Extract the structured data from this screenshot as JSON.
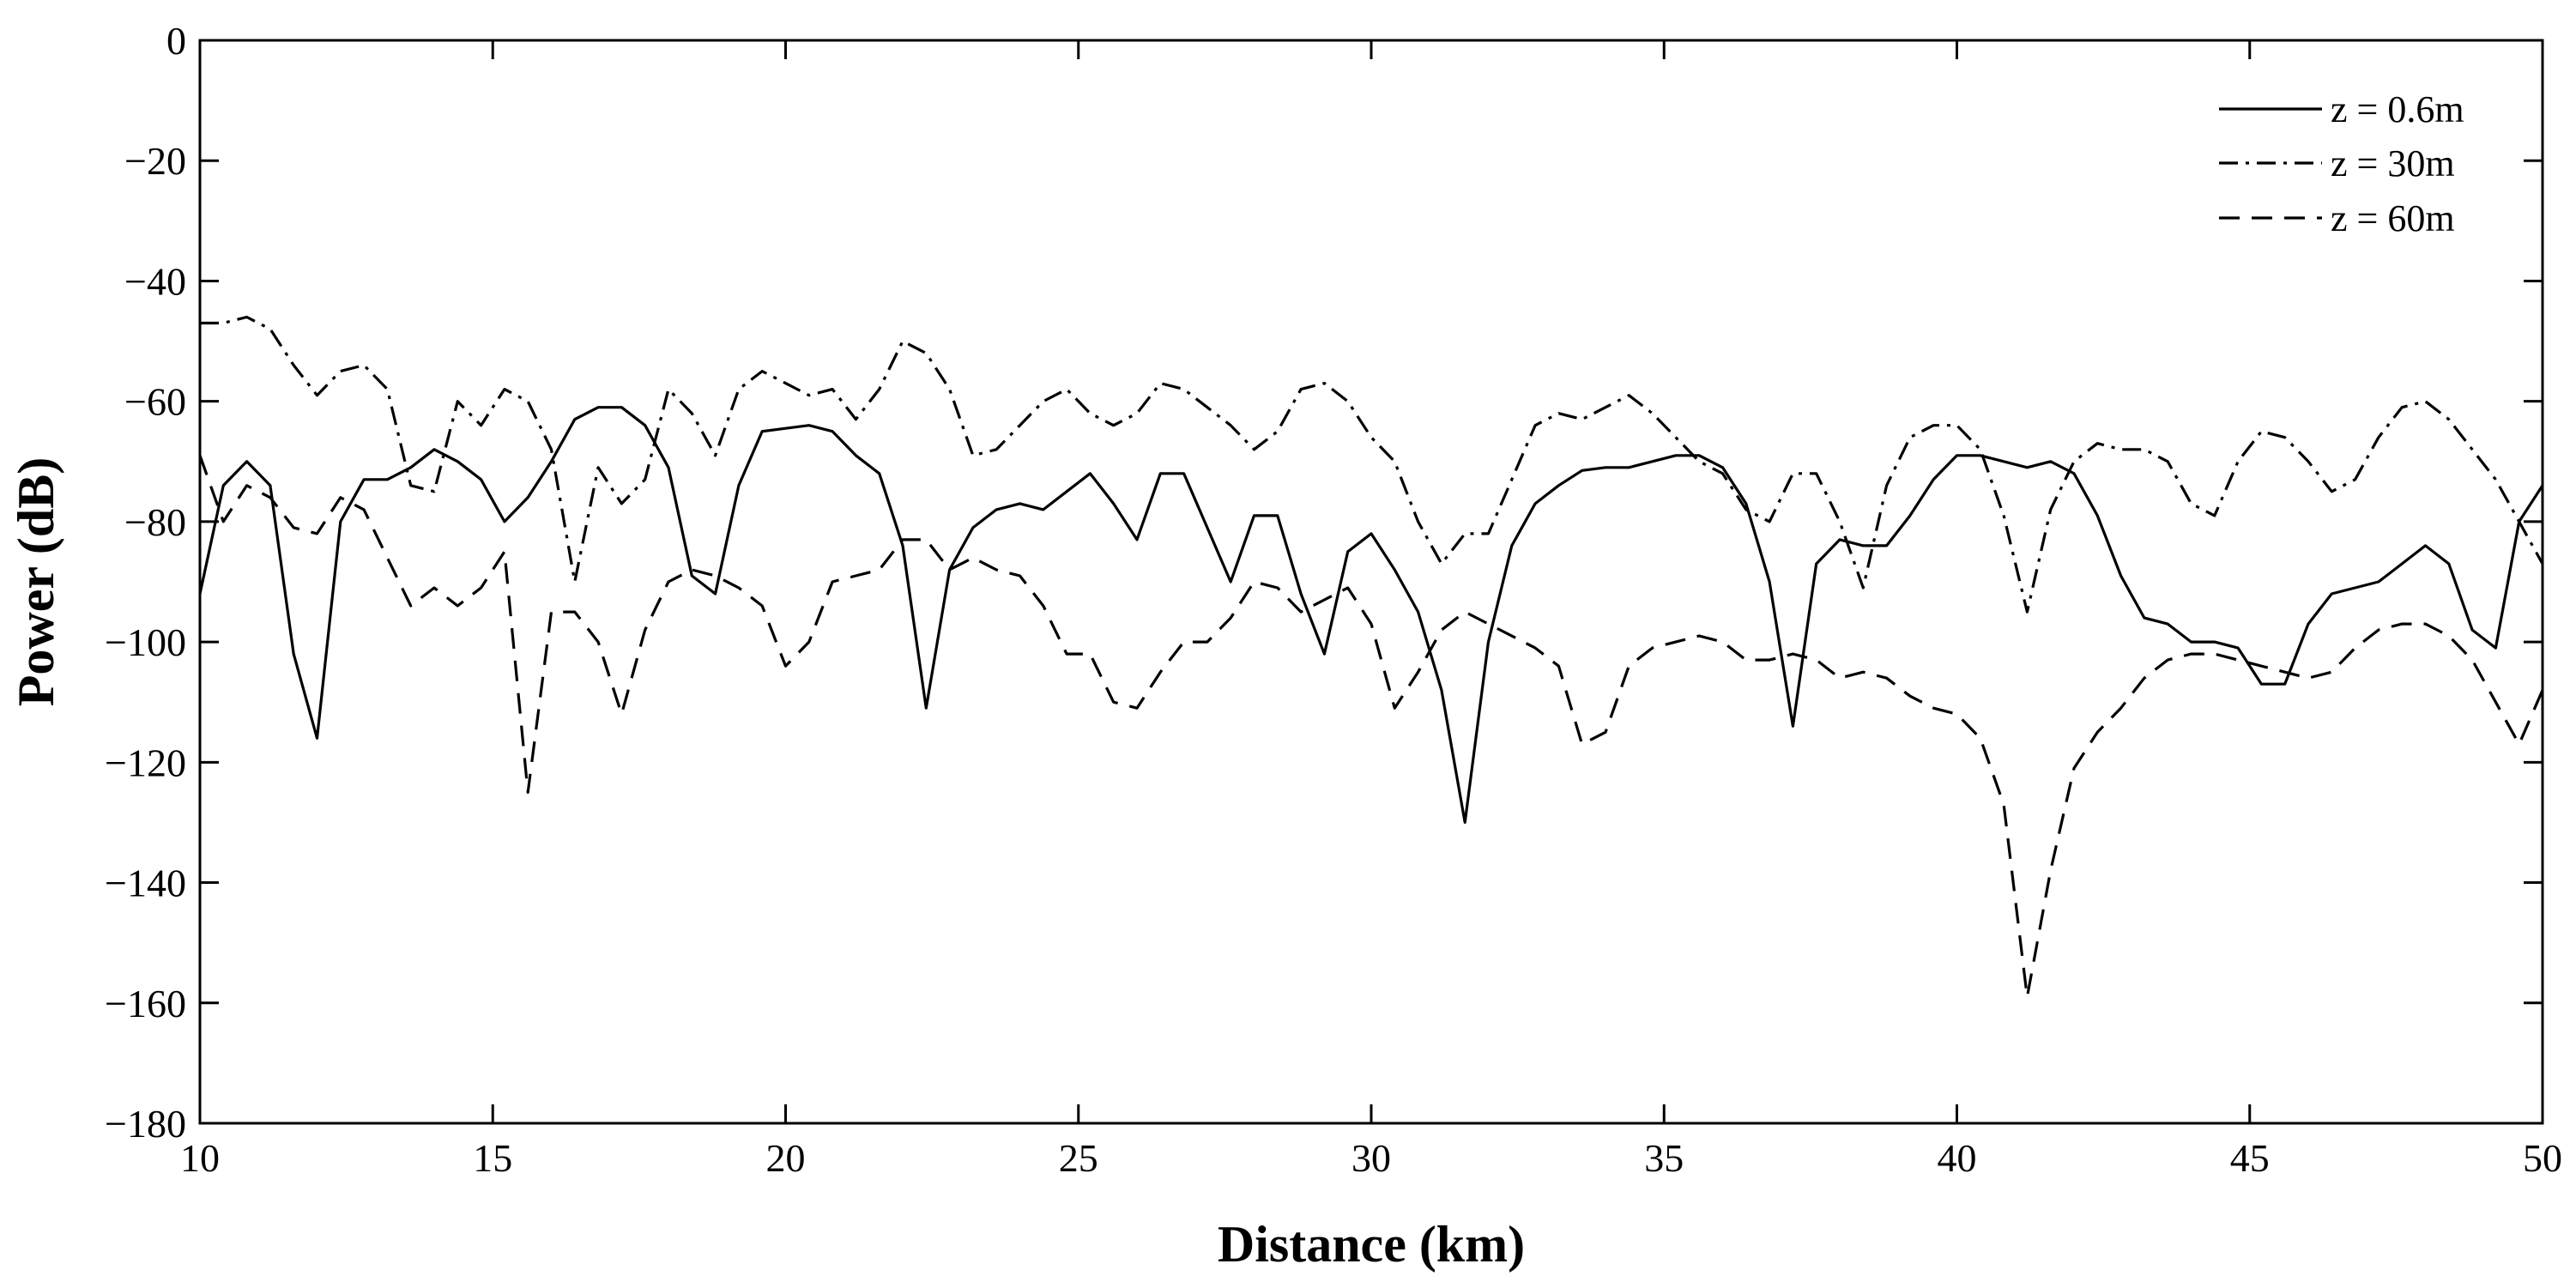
{
  "chart_data": {
    "type": "line",
    "title": "",
    "xlabel": "Distance (km)",
    "ylabel": "Power (dB)",
    "xlim": [
      10,
      50
    ],
    "ylim": [
      -180,
      0
    ],
    "xticks": [
      10,
      15,
      20,
      25,
      30,
      35,
      40,
      45,
      50
    ],
    "yticks": [
      0,
      -20,
      -40,
      -60,
      -80,
      -100,
      -120,
      -140,
      -160,
      -180
    ],
    "xtick_labels": [
      "10",
      "15",
      "20",
      "25",
      "30",
      "35",
      "40",
      "45",
      "50"
    ],
    "ytick_labels": [
      "0",
      "−20",
      "−40",
      "−60",
      "−80",
      "−100",
      "−120",
      "−140",
      "−160",
      "−180"
    ],
    "grid": false,
    "legend_position": "top-right",
    "series": [
      {
        "name": "z = 0.6m",
        "dash": "solid",
        "x": [
          10,
          10.4,
          10.8,
          11.2,
          11.6,
          12,
          12.4,
          12.8,
          13.2,
          13.6,
          14,
          14.4,
          14.8,
          15.2,
          15.6,
          16,
          16.4,
          16.8,
          17.2,
          17.6,
          18,
          18.4,
          18.8,
          19.2,
          19.6,
          20,
          20.4,
          20.8,
          21.2,
          21.6,
          22,
          22.4,
          22.8,
          23.2,
          23.6,
          24,
          24.4,
          24.8,
          25.2,
          25.6,
          26,
          26.4,
          26.8,
          27.2,
          27.6,
          28,
          28.4,
          28.8,
          29.2,
          29.6,
          30,
          30.4,
          30.8,
          31.2,
          31.6,
          32,
          32.4,
          32.8,
          33.2,
          33.6,
          34,
          34.4,
          34.8,
          35.2,
          35.6,
          36,
          36.4,
          36.8,
          37.2,
          37.6,
          38,
          38.4,
          38.8,
          39.2,
          39.6,
          40,
          40.4,
          40.8,
          41.2,
          41.6,
          42,
          42.4,
          42.8,
          43.2,
          43.6,
          44,
          44.4,
          44.8,
          45.2,
          45.6,
          46,
          46.4,
          46.8,
          47.2,
          47.6,
          48,
          48.4,
          48.8,
          49.2,
          49.6,
          50
        ],
        "y": [
          -92,
          -74,
          -70,
          -74,
          -102,
          -116,
          -80,
          -73,
          -73,
          -71,
          -68,
          -70,
          -73,
          -80,
          -76,
          -70,
          -63,
          -61,
          -61,
          -64,
          -71,
          -89,
          -92,
          -74,
          -65,
          -64.5,
          -64,
          -65,
          -69,
          -72,
          -84,
          -111,
          -88,
          -81,
          -78,
          -77,
          -78,
          -75,
          -72,
          -77,
          -83,
          -72,
          -72,
          -81,
          -90,
          -79,
          -79,
          -92,
          -102,
          -85,
          -82,
          -88,
          -95,
          -108,
          -130,
          -100,
          -84,
          -77,
          -74,
          -71.5,
          -71,
          -71,
          -70,
          -69,
          -69,
          -71,
          -77,
          -90,
          -114,
          -87,
          -83,
          -84,
          -84,
          -79,
          -73,
          -69,
          -69,
          -70,
          -71,
          -70,
          -72,
          -79,
          -89,
          -96,
          -97,
          -100,
          -100,
          -101,
          -107,
          -107,
          -97,
          -92,
          -91,
          -90,
          -87,
          -84,
          -87,
          -98,
          -101,
          -80,
          -74
        ]
      },
      {
        "name": "z = 30m",
        "dash": "dash-dot",
        "x": [
          10,
          10.4,
          10.8,
          11.2,
          11.6,
          12,
          12.4,
          12.8,
          13.2,
          13.6,
          14,
          14.4,
          14.8,
          15.2,
          15.6,
          16,
          16.4,
          16.8,
          17.2,
          17.6,
          18,
          18.4,
          18.8,
          19.2,
          19.6,
          20,
          20.4,
          20.8,
          21.2,
          21.6,
          22,
          22.4,
          22.8,
          23.2,
          23.6,
          24,
          24.4,
          24.8,
          25.2,
          25.6,
          26,
          26.4,
          26.8,
          27.2,
          27.6,
          28,
          28.4,
          28.8,
          29.2,
          29.6,
          30,
          30.4,
          30.8,
          31.2,
          31.6,
          32,
          32.4,
          32.8,
          33.2,
          33.6,
          34,
          34.4,
          34.8,
          35.2,
          35.6,
          36,
          36.4,
          36.8,
          37.2,
          37.6,
          38,
          38.4,
          38.8,
          39.2,
          39.6,
          40,
          40.4,
          40.8,
          41.2,
          41.6,
          42,
          42.4,
          42.8,
          43.2,
          43.6,
          44,
          44.4,
          44.8,
          45.2,
          45.6,
          46,
          46.4,
          46.8,
          47.2,
          47.6,
          48,
          48.4,
          48.8,
          49.2,
          49.6,
          50
        ],
        "y": [
          -47,
          -47,
          -46,
          -48,
          -54,
          -59,
          -55,
          -54,
          -58,
          -74,
          -75,
          -60,
          -64,
          -58,
          -60,
          -68,
          -90,
          -71,
          -77,
          -73,
          -58,
          -62,
          -69,
          -58,
          -55,
          -57,
          -59,
          -58,
          -63,
          -58,
          -50,
          -52,
          -58,
          -69,
          -68,
          -64,
          -60,
          -58,
          -62,
          -64,
          -62,
          -57,
          -58,
          -61,
          -64,
          -68,
          -65,
          -58,
          -57,
          -60,
          -66,
          -70,
          -80,
          -87,
          -82,
          -82,
          -73,
          -64,
          -62,
          -63,
          -61,
          -59,
          -62,
          -66,
          -70,
          -72,
          -78,
          -80,
          -72,
          -72,
          -80,
          -91,
          -74,
          -66,
          -64,
          -64,
          -68,
          -79,
          -95,
          -78,
          -70,
          -67,
          -68,
          -68,
          -70,
          -77,
          -79,
          -70,
          -65,
          -66,
          -70,
          -75,
          -73,
          -66,
          -61,
          -60,
          -63,
          -68,
          -73,
          -80,
          -87
        ]
      },
      {
        "name": "z = 60m",
        "dash": "dashed",
        "x": [
          10,
          10.4,
          10.8,
          11.2,
          11.6,
          12,
          12.4,
          12.8,
          13.2,
          13.6,
          14,
          14.4,
          14.8,
          15.2,
          15.6,
          16,
          16.4,
          16.8,
          17.2,
          17.6,
          18,
          18.4,
          18.8,
          19.2,
          19.6,
          20,
          20.4,
          20.8,
          21.2,
          21.6,
          22,
          22.4,
          22.8,
          23.2,
          23.6,
          24,
          24.4,
          24.8,
          25.2,
          25.6,
          26,
          26.4,
          26.8,
          27.2,
          27.6,
          28,
          28.4,
          28.8,
          29.2,
          29.6,
          30,
          30.4,
          30.8,
          31.2,
          31.6,
          32,
          32.4,
          32.8,
          33.2,
          33.6,
          34,
          34.4,
          34.8,
          35.2,
          35.6,
          36,
          36.4,
          36.8,
          37.2,
          37.6,
          38,
          38.4,
          38.8,
          39.2,
          39.6,
          40,
          40.4,
          40.8,
          41.2,
          41.6,
          42,
          42.4,
          42.8,
          43.2,
          43.6,
          44,
          44.4,
          44.8,
          45.2,
          45.6,
          46,
          46.4,
          46.8,
          47.2,
          47.6,
          48,
          48.4,
          48.8,
          49.2,
          49.6,
          50
        ],
        "y": [
          -69,
          -80,
          -74,
          -76,
          -81,
          -82,
          -76,
          -78,
          -86,
          -94,
          -91,
          -94,
          -91,
          -85,
          -125,
          -95,
          -95,
          -100,
          -112,
          -98,
          -90,
          -88,
          -89,
          -91,
          -94,
          -104,
          -100,
          -90,
          -89,
          -88,
          -83,
          -83,
          -88,
          -86,
          -88,
          -89,
          -94,
          -102,
          -102,
          -110,
          -111,
          -105,
          -100,
          -100,
          -96,
          -90,
          -91,
          -95,
          -93,
          -91,
          -97,
          -111,
          -105,
          -98,
          -95,
          -97,
          -99,
          -101,
          -104,
          -117,
          -115,
          -104,
          -101,
          -100,
          -99,
          -100,
          -103,
          -103,
          -102,
          -103,
          -106,
          -105,
          -106,
          -109,
          -111,
          -112,
          -116,
          -127,
          -159,
          -138,
          -121,
          -115,
          -111,
          -106,
          -103,
          -102,
          -102,
          -103,
          -104,
          -105,
          -106,
          -105,
          -101,
          -98,
          -97,
          -97,
          -99,
          -103,
          -110,
          -117,
          -108
        ]
      }
    ]
  }
}
